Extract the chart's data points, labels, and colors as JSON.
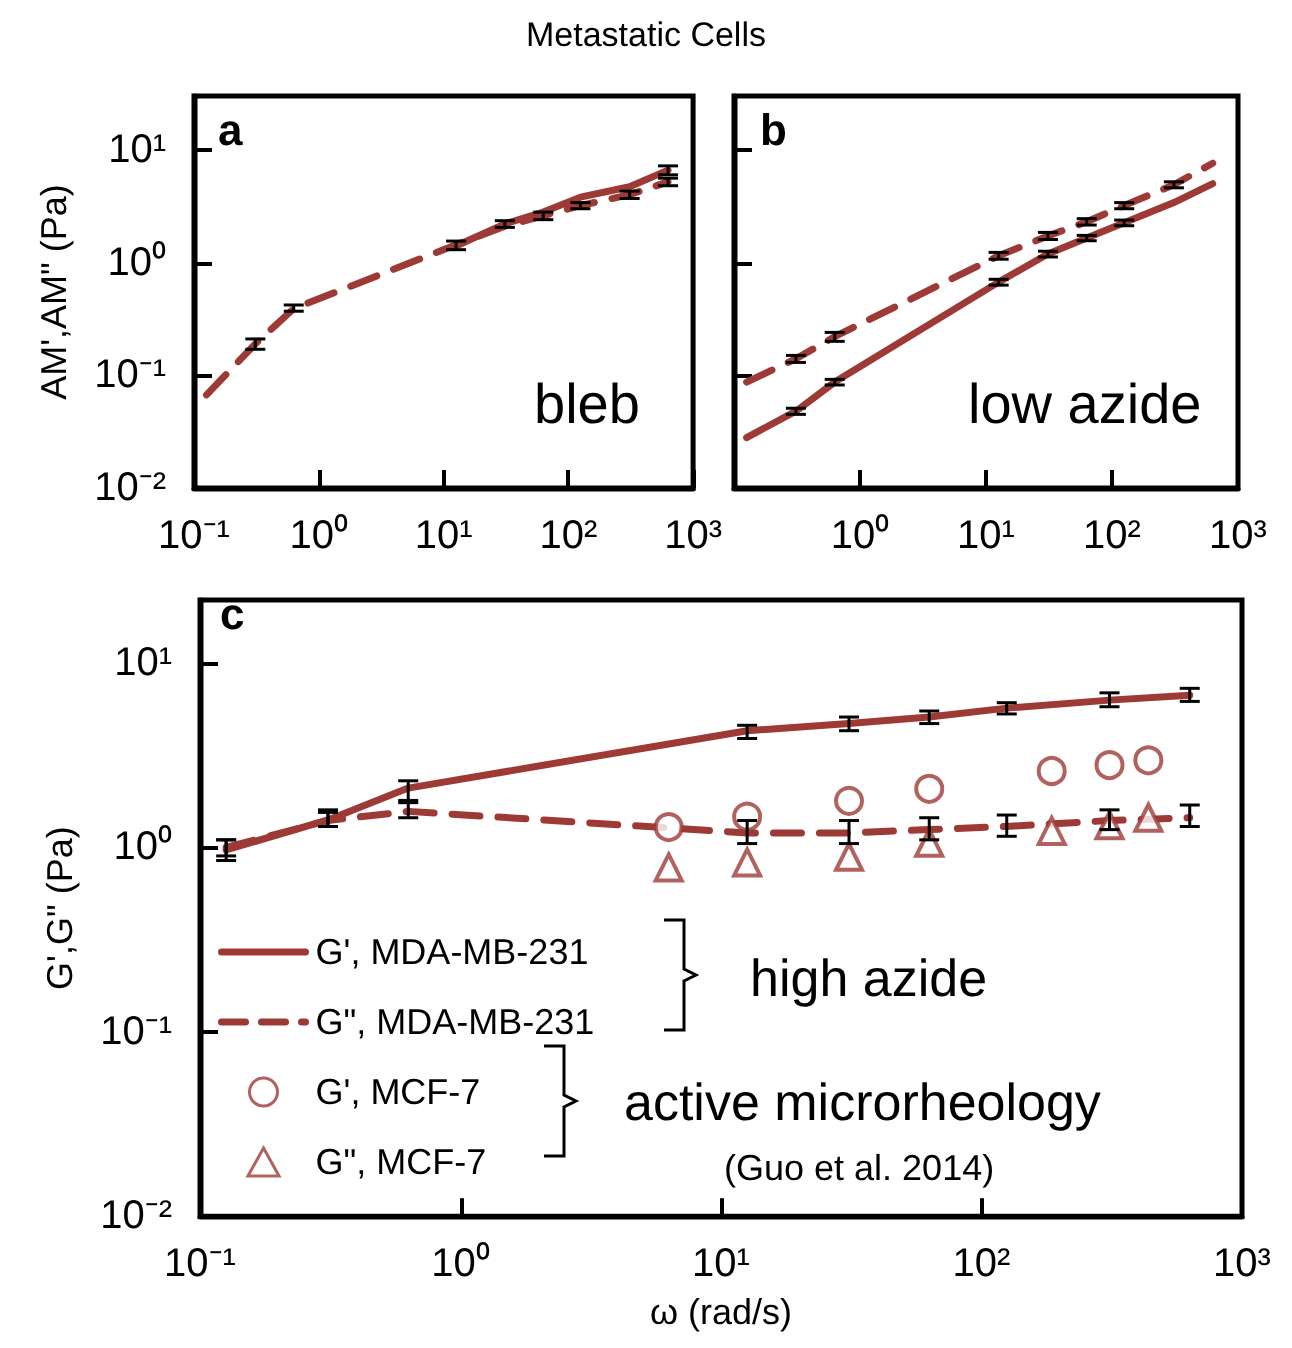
{
  "chart_data": [
    {
      "type": "line",
      "title": "Metastatic Cells",
      "ylabel": "AM',AM\" (Pa)",
      "annotations": [
        "a",
        "bleb"
      ],
      "log": "xy",
      "tick_labels": "xy",
      "xlim": [
        0.1,
        1000
      ],
      "ylim": [
        0.01,
        30
      ],
      "xticks": [
        {
          "value": 0.1,
          "label": "10⁻¹"
        },
        {
          "value": 1,
          "label": "10⁰"
        },
        {
          "value": 10,
          "label": "10¹"
        },
        {
          "value": 100,
          "label": "10²"
        },
        {
          "value": 1000,
          "label": "10³"
        }
      ],
      "yticks": [
        {
          "value": 0.01,
          "label": "10⁻²"
        },
        {
          "value": 0.1,
          "label": "10⁻¹"
        },
        {
          "value": 1,
          "label": "10⁰"
        },
        {
          "value": 10,
          "label": "10¹"
        }
      ],
      "x": [
        0.126,
        0.31,
        0.63,
        12.6,
        31,
        63,
        125,
        310,
        630
      ],
      "series": [
        {
          "color": "#9e3a36",
          "line_style": "solid",
          "marker": "none",
          "values": [
            null,
            null,
            null,
            1.4,
            2.2,
            2.8,
            3.8,
            4.7,
            6.6
          ],
          "errors": [
            null,
            null,
            null,
            [
              1.3,
              1.55
            ],
            [
              2.05,
              2.35
            ],
            null,
            null,
            null,
            [
              6.0,
              7.2
            ]
          ]
        },
        {
          "color": "#9e3a36",
          "line_style": "dashed",
          "marker": "none",
          "values": [
            0.067,
            0.19,
            0.39,
            1.44,
            2.1,
            2.6,
            3.2,
            4.0,
            5.2
          ],
          "errors": [
            null,
            [
              0.17,
              0.21
            ],
            [
              0.37,
              0.42
            ],
            null,
            null,
            [
              2.4,
              2.8
            ],
            [
              3.0,
              3.4
            ],
            [
              3.7,
              4.3
            ],
            [
              4.8,
              5.6
            ]
          ]
        }
      ]
    },
    {
      "type": "line",
      "annotations": [
        "b",
        "low azide"
      ],
      "log": "xy",
      "tick_labels": "x",
      "xlim": [
        0.1,
        1000
      ],
      "ylim": [
        0.01,
        30
      ],
      "xticks": [
        {
          "value": 0.1,
          "label": null
        },
        {
          "value": 1,
          "label": "10⁰"
        },
        {
          "value": 10,
          "label": "10¹"
        },
        {
          "value": 100,
          "label": "10²"
        },
        {
          "value": 1000,
          "label": "10³"
        }
      ],
      "yticks": [
        {
          "value": 0.01,
          "label": null
        },
        {
          "value": 0.1,
          "label": null
        },
        {
          "value": 1,
          "label": null
        },
        {
          "value": 10,
          "label": null
        }
      ],
      "x": [
        0.126,
        0.31,
        0.63,
        12.6,
        31,
        63,
        125,
        310,
        630
      ],
      "series": [
        {
          "color": "#9e3a36",
          "line_style": "solid",
          "marker": "none",
          "values": [
            0.028,
            0.048,
            0.087,
            0.67,
            1.19,
            1.65,
            2.25,
            3.4,
            5.0
          ],
          "errors": [
            null,
            [
              0.045,
              0.051
            ],
            [
              0.082,
              0.092
            ],
            [
              0.63,
              0.71
            ],
            [
              1.12,
              1.26
            ],
            [
              1.56,
              1.74
            ],
            [
              2.12,
              2.38
            ],
            null,
            null
          ]
        },
        {
          "color": "#9e3a36",
          "line_style": "dashed",
          "marker": "none",
          "values": [
            0.087,
            0.14,
            0.22,
            1.15,
            1.72,
            2.3,
            3.2,
            4.9,
            7.6
          ],
          "errors": [
            null,
            [
              0.13,
              0.15
            ],
            [
              0.2,
              0.24
            ],
            [
              1.07,
              1.23
            ],
            [
              1.6,
              1.85
            ],
            [
              2.15,
              2.45
            ],
            [
              3.0,
              3.4
            ],
            [
              4.6,
              5.2
            ],
            null
          ]
        }
      ]
    },
    {
      "type": "line",
      "xlabel": "ω (rad/s)",
      "ylabel": "G',G\" (Pa)",
      "annotations": [
        "c",
        "high azide",
        "active microrheology",
        "(Guo et al. 2014)"
      ],
      "log": "xy",
      "legend": "bottom left",
      "xlim": [
        0.1,
        1000
      ],
      "ylim": [
        0.01,
        22
      ],
      "xticks": [
        {
          "value": 0.1,
          "label": "10⁻¹"
        },
        {
          "value": 1,
          "label": "10⁰"
        },
        {
          "value": 10,
          "label": "10¹"
        },
        {
          "value": 100,
          "label": "10²"
        },
        {
          "value": 1000,
          "label": "10³"
        }
      ],
      "yticks": [
        {
          "value": 0.01,
          "label": "10⁻²"
        },
        {
          "value": 0.1,
          "label": "10⁻¹"
        },
        {
          "value": 1,
          "label": "10⁰"
        },
        {
          "value": 10,
          "label": "10¹"
        }
      ],
      "series": [
        {
          "name": "G', MDA-MB-231",
          "color": "#9e3a36",
          "line_style": "solid",
          "marker": "none",
          "x": [
            0.126,
            0.31,
            0.63,
            12.6,
            31,
            63,
            125,
            310,
            630
          ],
          "values": [
            0.97,
            1.41,
            2.1,
            4.3,
            4.7,
            5.1,
            5.7,
            6.3,
            6.7
          ],
          "errors": [
            [
              0.85,
              1.1
            ],
            [
              1.3,
              1.6
            ],
            [
              1.8,
              2.3
            ],
            [
              3.9,
              4.6
            ],
            [
              4.3,
              5.1
            ],
            [
              4.7,
              5.5
            ],
            [
              5.3,
              6.1
            ],
            [
              5.8,
              6.9
            ],
            [
              6.2,
              7.3
            ]
          ]
        },
        {
          "name": "G\", MDA-MB-231",
          "color": "#9e3a36",
          "line_style": "dashed",
          "marker": "none",
          "x": [
            0.126,
            0.31,
            0.63,
            12.6,
            31,
            63,
            125,
            310,
            630
          ],
          "values": [
            1.0,
            1.4,
            1.57,
            1.2,
            1.2,
            1.25,
            1.3,
            1.4,
            1.45
          ],
          "errors": [
            [
              0.9,
              1.1
            ],
            [
              1.3,
              1.55
            ],
            [
              1.45,
              1.75
            ],
            [
              1.05,
              1.4
            ],
            [
              1.05,
              1.4
            ],
            [
              1.1,
              1.45
            ],
            [
              1.15,
              1.5
            ],
            [
              1.25,
              1.6
            ],
            [
              1.3,
              1.7
            ]
          ]
        },
        {
          "name": "G', MCF-7",
          "type": "scatter",
          "color": "#9e3a36",
          "marker": "circle",
          "x": [
            6.3,
            12.6,
            31,
            63,
            186,
            310,
            437
          ],
          "values": [
            1.29,
            1.47,
            1.79,
            2.08,
            2.6,
            2.8,
            2.97
          ]
        },
        {
          "name": "G\", MCF-7",
          "type": "scatter",
          "color": "#9e3a36",
          "marker": "triangle",
          "x": [
            6.3,
            12.6,
            31,
            63,
            186,
            310,
            437
          ],
          "values": [
            0.78,
            0.83,
            0.89,
            1.06,
            1.23,
            1.32,
            1.45
          ]
        }
      ]
    }
  ]
}
